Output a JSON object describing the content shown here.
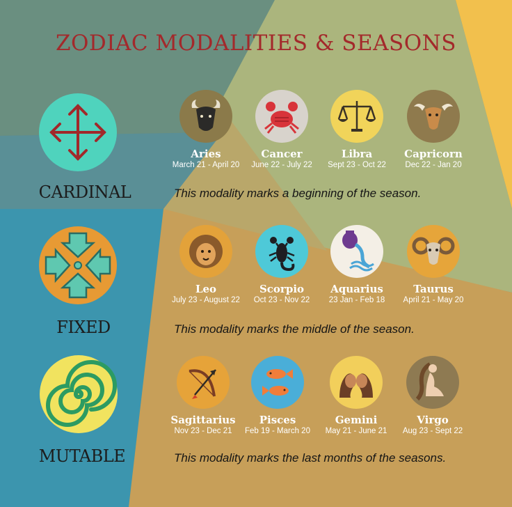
{
  "title": "ZODIAC MODALITIES & SEASONS",
  "colors": {
    "title": "#a3292b",
    "bg_teal_dark": "#5e8b88",
    "bg_olive": "#aab47e",
    "bg_sand": "#c9a05a",
    "bg_yellow": "#f2c04d",
    "bg_blue": "#3c95ae"
  },
  "modalities": [
    {
      "key": "cardinal",
      "label": "CARDINAL",
      "icon": "outward-arrows-icon",
      "description": "This modality marks a beginning of the season.",
      "signs": [
        {
          "name": "Aries",
          "dates": "March 21 - April 20",
          "icon": "ram-bull-icon"
        },
        {
          "name": "Cancer",
          "dates": "June 22 - July 22",
          "icon": "crab-icon"
        },
        {
          "name": "Libra",
          "dates": "Sept 23 - Oct 22",
          "icon": "scales-icon"
        },
        {
          "name": "Capricorn",
          "dates": "Dec 22 - Jan 20",
          "icon": "goat-icon"
        }
      ]
    },
    {
      "key": "fixed",
      "label": "FIXED",
      "icon": "inward-arrows-icon",
      "description": "This modality marks the middle of the season.",
      "signs": [
        {
          "name": "Leo",
          "dates": "July 23 - August 22",
          "icon": "lion-icon"
        },
        {
          "name": "Scorpio",
          "dates": "Oct 23 - Nov 22",
          "icon": "scorpion-icon"
        },
        {
          "name": "Aquarius",
          "dates": "23 Jan  - Feb 18",
          "icon": "water-jug-icon"
        },
        {
          "name": "Taurus",
          "dates": "April 21 - May 20",
          "icon": "ram-icon"
        }
      ]
    },
    {
      "key": "mutable",
      "label": "MUTABLE",
      "icon": "spiral-icon",
      "description": "This modality marks the last months of the seasons.",
      "signs": [
        {
          "name": "Sagittarius",
          "dates": "Nov 23 - Dec 21",
          "icon": "bow-arrow-icon"
        },
        {
          "name": "Pisces",
          "dates": "Feb 19 - March 20",
          "icon": "fish-icon"
        },
        {
          "name": "Gemini",
          "dates": "May 21 - June 21",
          "icon": "twins-icon"
        },
        {
          "name": "Virgo",
          "dates": "Aug 23 - Sept 22",
          "icon": "maiden-icon"
        }
      ]
    }
  ]
}
